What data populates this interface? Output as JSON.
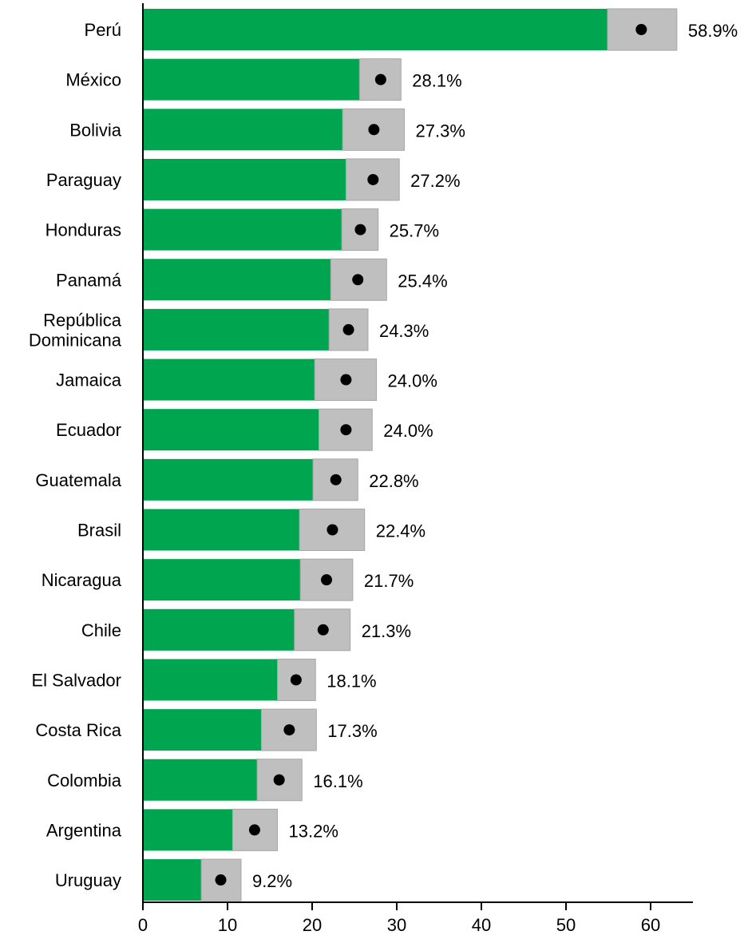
{
  "chart_data": {
    "type": "bar",
    "categories": [
      "Perú",
      "México",
      "Bolivia",
      "Paraguay",
      "Honduras",
      "Panamá",
      "República Dominicana",
      "Jamaica",
      "Ecuador",
      "Guatemala",
      "Brasil",
      "Nicaragua",
      "Chile",
      "El Salvador",
      "Costa Rica",
      "Colombia",
      "Argentina",
      "Uruguay"
    ],
    "category_lines": [
      [
        "Perú"
      ],
      [
        "México"
      ],
      [
        "Bolivia"
      ],
      [
        "Paraguay"
      ],
      [
        "Honduras"
      ],
      [
        "Panamá"
      ],
      [
        "República",
        "Dominicana"
      ],
      [
        "Jamaica"
      ],
      [
        "Ecuador"
      ],
      [
        "Guatemala"
      ],
      [
        "Brasil"
      ],
      [
        "Nicaragua"
      ],
      [
        "Chile"
      ],
      [
        "El Salvador"
      ],
      [
        "Costa Rica"
      ],
      [
        "Colombia"
      ],
      [
        "Argentina"
      ],
      [
        "Uruguay"
      ]
    ],
    "series": [
      {
        "values": [
          54.9,
          25.6,
          23.6,
          24.0,
          23.5,
          22.2,
          22.0,
          20.3,
          20.8,
          20.1,
          18.5,
          18.6,
          17.9,
          15.9,
          14.0,
          13.5,
          10.6,
          6.9
        ]
      },
      {
        "values": [
          63.1,
          30.5,
          30.9,
          30.3,
          27.8,
          28.8,
          26.6,
          27.6,
          27.1,
          25.4,
          26.2,
          24.8,
          24.5,
          20.4,
          20.5,
          18.8,
          15.9,
          11.6
        ]
      },
      {
        "values": [
          58.9,
          28.1,
          27.3,
          27.2,
          25.7,
          25.4,
          24.3,
          24.0,
          24.0,
          22.8,
          22.4,
          21.7,
          21.3,
          18.1,
          17.3,
          16.1,
          13.2,
          9.2
        ]
      }
    ],
    "value_labels": [
      "58.9%",
      "28.1%",
      "27.3%",
      "27.2%",
      "25.7%",
      "25.4%",
      "24.3%",
      "24.0%",
      "24.0%",
      "22.8%",
      "22.4%",
      "21.7%",
      "21.3%",
      "18.1%",
      "17.3%",
      "16.1%",
      "13.2%",
      "9.2%"
    ],
    "xticks": [
      "0",
      "10",
      "20",
      "30",
      "40",
      "50",
      "60"
    ],
    "xlim": [
      0,
      65
    ],
    "title": "",
    "xlabel": "",
    "ylabel": "",
    "grid": false,
    "colors": {
      "bar": "#00a54f",
      "range": "#bfbfbf",
      "range_edge": "#a6a6a6",
      "dot": "#000000",
      "axis": "#000000"
    }
  }
}
